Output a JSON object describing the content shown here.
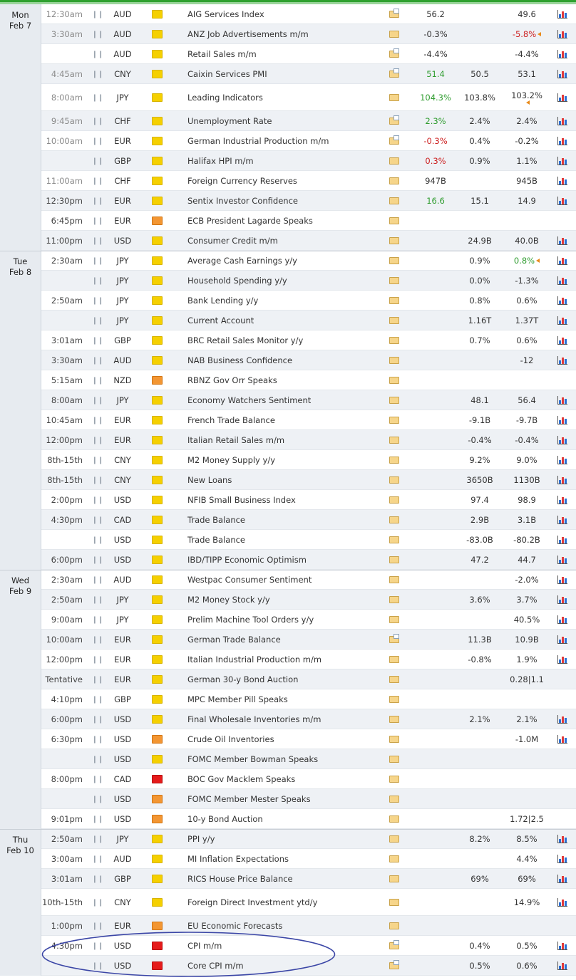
{
  "colors": {
    "good": "#2f9c2f",
    "bad": "#cc1f1f",
    "impact_low": "#f5d000",
    "impact_medium": "#f39632",
    "impact_high": "#e51b1b",
    "annotation": "#3b46a6"
  },
  "days": [
    {
      "name": "Mon",
      "date": "Feb 7"
    },
    {
      "name": "Tue",
      "date": "Feb 8"
    },
    {
      "name": "Wed",
      "date": "Feb 9"
    },
    {
      "name": "Thu",
      "date": "Feb 10"
    }
  ],
  "rows": [
    {
      "day": 0,
      "time": "12:30am",
      "time_dim": true,
      "currency": "AUD",
      "impact": "low",
      "event": "AIG Services Index",
      "folder": "open",
      "actual": "56.2",
      "actual_color": "",
      "forecast": "",
      "previous": "49.6",
      "previous_color": "",
      "revised": false
    },
    {
      "day": 0,
      "time": "3:30am",
      "time_dim": true,
      "currency": "AUD",
      "impact": "low",
      "event": "ANZ Job Advertisements m/m",
      "folder": "closed",
      "actual": "-0.3%",
      "actual_color": "",
      "forecast": "",
      "previous": "-5.8%",
      "previous_color": "bad",
      "revised": true
    },
    {
      "day": 0,
      "time": "",
      "time_dim": false,
      "currency": "AUD",
      "impact": "low",
      "event": "Retail Sales m/m",
      "folder": "open",
      "actual": "-4.4%",
      "actual_color": "",
      "forecast": "",
      "previous": "-4.4%",
      "previous_color": "",
      "revised": false
    },
    {
      "day": 0,
      "time": "4:45am",
      "time_dim": true,
      "currency": "CNY",
      "impact": "low",
      "event": "Caixin Services PMI",
      "folder": "open",
      "actual": "51.4",
      "actual_color": "good",
      "forecast": "50.5",
      "previous": "53.1",
      "previous_color": "",
      "revised": false
    },
    {
      "day": 0,
      "time": "8:00am",
      "time_dim": true,
      "currency": "JPY",
      "impact": "low",
      "event": "Leading Indicators",
      "folder": "closed",
      "actual": "104.3%",
      "actual_color": "good",
      "forecast": "103.8%",
      "previous": "103.2%",
      "previous_color": "",
      "revised": true,
      "tall": true
    },
    {
      "day": 0,
      "time": "9:45am",
      "time_dim": true,
      "currency": "CHF",
      "impact": "low",
      "event": "Unemployment Rate",
      "folder": "open",
      "actual": "2.3%",
      "actual_color": "good",
      "forecast": "2.4%",
      "previous": "2.4%",
      "previous_color": "",
      "revised": false
    },
    {
      "day": 0,
      "time": "10:00am",
      "time_dim": true,
      "currency": "EUR",
      "impact": "low",
      "event": "German Industrial Production m/m",
      "folder": "open",
      "actual": "-0.3%",
      "actual_color": "bad",
      "forecast": "0.4%",
      "previous": "-0.2%",
      "previous_color": "",
      "revised": false
    },
    {
      "day": 0,
      "time": "",
      "time_dim": false,
      "currency": "GBP",
      "impact": "low",
      "event": "Halifax HPI m/m",
      "folder": "closed",
      "actual": "0.3%",
      "actual_color": "bad",
      "forecast": "0.9%",
      "previous": "1.1%",
      "previous_color": "",
      "revised": false
    },
    {
      "day": 0,
      "time": "11:00am",
      "time_dim": true,
      "currency": "CHF",
      "impact": "low",
      "event": "Foreign Currency Reserves",
      "folder": "closed",
      "actual": "947B",
      "actual_color": "",
      "forecast": "",
      "previous": "945B",
      "previous_color": "",
      "revised": false
    },
    {
      "day": 0,
      "time": "12:30pm",
      "time_dim": false,
      "currency": "EUR",
      "impact": "low",
      "event": "Sentix Investor Confidence",
      "folder": "closed",
      "actual": "16.6",
      "actual_color": "good",
      "forecast": "15.1",
      "previous": "14.9",
      "previous_color": "",
      "revised": false
    },
    {
      "day": 0,
      "time": "6:45pm",
      "time_dim": false,
      "currency": "EUR",
      "impact": "medium",
      "event": "ECB President Lagarde Speaks",
      "folder": "closed",
      "actual": "",
      "actual_color": "",
      "forecast": "",
      "previous": "",
      "previous_color": "",
      "revised": false,
      "nochart": true
    },
    {
      "day": 0,
      "time": "11:00pm",
      "time_dim": false,
      "currency": "USD",
      "impact": "low",
      "event": "Consumer Credit m/m",
      "folder": "closed",
      "actual": "",
      "actual_color": "",
      "forecast": "24.9B",
      "previous": "40.0B",
      "previous_color": "",
      "revised": false
    },
    {
      "day": 1,
      "time": "2:30am",
      "time_dim": false,
      "currency": "JPY",
      "impact": "low",
      "event": "Average Cash Earnings y/y",
      "folder": "closed",
      "actual": "",
      "actual_color": "",
      "forecast": "0.9%",
      "previous": "0.8%",
      "previous_color": "good",
      "revised": true
    },
    {
      "day": 1,
      "time": "",
      "time_dim": false,
      "currency": "JPY",
      "impact": "low",
      "event": "Household Spending y/y",
      "folder": "closed",
      "actual": "",
      "actual_color": "",
      "forecast": "0.0%",
      "previous": "-1.3%",
      "previous_color": "",
      "revised": false
    },
    {
      "day": 1,
      "time": "2:50am",
      "time_dim": false,
      "currency": "JPY",
      "impact": "low",
      "event": "Bank Lending y/y",
      "folder": "closed",
      "actual": "",
      "actual_color": "",
      "forecast": "0.8%",
      "previous": "0.6%",
      "previous_color": "",
      "revised": false
    },
    {
      "day": 1,
      "time": "",
      "time_dim": false,
      "currency": "JPY",
      "impact": "low",
      "event": "Current Account",
      "folder": "closed",
      "actual": "",
      "actual_color": "",
      "forecast": "1.16T",
      "previous": "1.37T",
      "previous_color": "",
      "revised": false
    },
    {
      "day": 1,
      "time": "3:01am",
      "time_dim": false,
      "currency": "GBP",
      "impact": "low",
      "event": "BRC Retail Sales Monitor y/y",
      "folder": "closed",
      "actual": "",
      "actual_color": "",
      "forecast": "0.7%",
      "previous": "0.6%",
      "previous_color": "",
      "revised": false
    },
    {
      "day": 1,
      "time": "3:30am",
      "time_dim": false,
      "currency": "AUD",
      "impact": "low",
      "event": "NAB Business Confidence",
      "folder": "closed",
      "actual": "",
      "actual_color": "",
      "forecast": "",
      "previous": "-12",
      "previous_color": "",
      "revised": false
    },
    {
      "day": 1,
      "time": "5:15am",
      "time_dim": false,
      "currency": "NZD",
      "impact": "medium",
      "event": "RBNZ Gov Orr Speaks",
      "folder": "closed",
      "actual": "",
      "actual_color": "",
      "forecast": "",
      "previous": "",
      "previous_color": "",
      "revised": false,
      "nochart": true
    },
    {
      "day": 1,
      "time": "8:00am",
      "time_dim": false,
      "currency": "JPY",
      "impact": "low",
      "event": "Economy Watchers Sentiment",
      "folder": "closed",
      "actual": "",
      "actual_color": "",
      "forecast": "48.1",
      "previous": "56.4",
      "previous_color": "",
      "revised": false
    },
    {
      "day": 1,
      "time": "10:45am",
      "time_dim": false,
      "currency": "EUR",
      "impact": "low",
      "event": "French Trade Balance",
      "folder": "closed",
      "actual": "",
      "actual_color": "",
      "forecast": "-9.1B",
      "previous": "-9.7B",
      "previous_color": "",
      "revised": false
    },
    {
      "day": 1,
      "time": "12:00pm",
      "time_dim": false,
      "currency": "EUR",
      "impact": "low",
      "event": "Italian Retail Sales m/m",
      "folder": "closed",
      "actual": "",
      "actual_color": "",
      "forecast": "-0.4%",
      "previous": "-0.4%",
      "previous_color": "",
      "revised": false
    },
    {
      "day": 1,
      "time": "8th-15th",
      "time_dim": false,
      "currency": "CNY",
      "impact": "low",
      "event": "M2 Money Supply y/y",
      "folder": "closed",
      "actual": "",
      "actual_color": "",
      "forecast": "9.2%",
      "previous": "9.0%",
      "previous_color": "",
      "revised": false
    },
    {
      "day": 1,
      "time": "8th-15th",
      "time_dim": false,
      "currency": "CNY",
      "impact": "low",
      "event": "New Loans",
      "folder": "closed",
      "actual": "",
      "actual_color": "",
      "forecast": "3650B",
      "previous": "1130B",
      "previous_color": "",
      "revised": false
    },
    {
      "day": 1,
      "time": "2:00pm",
      "time_dim": false,
      "currency": "USD",
      "impact": "low",
      "event": "NFIB Small Business Index",
      "folder": "closed",
      "actual": "",
      "actual_color": "",
      "forecast": "97.4",
      "previous": "98.9",
      "previous_color": "",
      "revised": false
    },
    {
      "day": 1,
      "time": "4:30pm",
      "time_dim": false,
      "currency": "CAD",
      "impact": "low",
      "event": "Trade Balance",
      "folder": "closed",
      "actual": "",
      "actual_color": "",
      "forecast": "2.9B",
      "previous": "3.1B",
      "previous_color": "",
      "revised": false
    },
    {
      "day": 1,
      "time": "",
      "time_dim": false,
      "currency": "USD",
      "impact": "low",
      "event": "Trade Balance",
      "folder": "closed",
      "actual": "",
      "actual_color": "",
      "forecast": "-83.0B",
      "previous": "-80.2B",
      "previous_color": "",
      "revised": false
    },
    {
      "day": 1,
      "time": "6:00pm",
      "time_dim": false,
      "currency": "USD",
      "impact": "low",
      "event": "IBD/TIPP Economic Optimism",
      "folder": "closed",
      "actual": "",
      "actual_color": "",
      "forecast": "47.2",
      "previous": "44.7",
      "previous_color": "",
      "revised": false
    },
    {
      "day": 2,
      "time": "2:30am",
      "time_dim": false,
      "currency": "AUD",
      "impact": "low",
      "event": "Westpac Consumer Sentiment",
      "folder": "closed",
      "actual": "",
      "actual_color": "",
      "forecast": "",
      "previous": "-2.0%",
      "previous_color": "",
      "revised": false
    },
    {
      "day": 2,
      "time": "2:50am",
      "time_dim": false,
      "currency": "JPY",
      "impact": "low",
      "event": "M2 Money Stock y/y",
      "folder": "closed",
      "actual": "",
      "actual_color": "",
      "forecast": "3.6%",
      "previous": "3.7%",
      "previous_color": "",
      "revised": false
    },
    {
      "day": 2,
      "time": "9:00am",
      "time_dim": false,
      "currency": "JPY",
      "impact": "low",
      "event": "Prelim Machine Tool Orders y/y",
      "folder": "closed",
      "actual": "",
      "actual_color": "",
      "forecast": "",
      "previous": "40.5%",
      "previous_color": "",
      "revised": false
    },
    {
      "day": 2,
      "time": "10:00am",
      "time_dim": false,
      "currency": "EUR",
      "impact": "low",
      "event": "German Trade Balance",
      "folder": "open",
      "actual": "",
      "actual_color": "",
      "forecast": "11.3B",
      "previous": "10.9B",
      "previous_color": "",
      "revised": false
    },
    {
      "day": 2,
      "time": "12:00pm",
      "time_dim": false,
      "currency": "EUR",
      "impact": "low",
      "event": "Italian Industrial Production m/m",
      "folder": "closed",
      "actual": "",
      "actual_color": "",
      "forecast": "-0.8%",
      "previous": "1.9%",
      "previous_color": "",
      "revised": false
    },
    {
      "day": 2,
      "time": "Tentative",
      "time_dim": false,
      "currency": "EUR",
      "impact": "low",
      "event": "German 30-y Bond Auction",
      "folder": "closed",
      "actual": "",
      "actual_color": "",
      "forecast": "",
      "previous": "0.28|1.1",
      "previous_color": "",
      "revised": false,
      "nochart": true
    },
    {
      "day": 2,
      "time": "4:10pm",
      "time_dim": false,
      "currency": "GBP",
      "impact": "low",
      "event": "MPC Member Pill Speaks",
      "folder": "closed",
      "actual": "",
      "actual_color": "",
      "forecast": "",
      "previous": "",
      "previous_color": "",
      "revised": false,
      "nochart": true
    },
    {
      "day": 2,
      "time": "6:00pm",
      "time_dim": false,
      "currency": "USD",
      "impact": "low",
      "event": "Final Wholesale Inventories m/m",
      "folder": "closed",
      "actual": "",
      "actual_color": "",
      "forecast": "2.1%",
      "previous": "2.1%",
      "previous_color": "",
      "revised": false
    },
    {
      "day": 2,
      "time": "6:30pm",
      "time_dim": false,
      "currency": "USD",
      "impact": "medium",
      "event": "Crude Oil Inventories",
      "folder": "closed",
      "actual": "",
      "actual_color": "",
      "forecast": "",
      "previous": "-1.0M",
      "previous_color": "",
      "revised": false
    },
    {
      "day": 2,
      "time": "",
      "time_dim": false,
      "currency": "USD",
      "impact": "low",
      "event": "FOMC Member Bowman Speaks",
      "folder": "closed",
      "actual": "",
      "actual_color": "",
      "forecast": "",
      "previous": "",
      "previous_color": "",
      "revised": false,
      "nochart": true
    },
    {
      "day": 2,
      "time": "8:00pm",
      "time_dim": false,
      "currency": "CAD",
      "impact": "high",
      "event": "BOC Gov Macklem Speaks",
      "folder": "closed",
      "actual": "",
      "actual_color": "",
      "forecast": "",
      "previous": "",
      "previous_color": "",
      "revised": false,
      "nochart": true
    },
    {
      "day": 2,
      "time": "",
      "time_dim": false,
      "currency": "USD",
      "impact": "medium",
      "event": "FOMC Member Mester Speaks",
      "folder": "closed",
      "actual": "",
      "actual_color": "",
      "forecast": "",
      "previous": "",
      "previous_color": "",
      "revised": false,
      "nochart": true
    },
    {
      "day": 2,
      "time": "9:01pm",
      "time_dim": false,
      "currency": "USD",
      "impact": "medium",
      "event": "10-y Bond Auction",
      "folder": "closed",
      "actual": "",
      "actual_color": "",
      "forecast": "",
      "previous": "1.72|2.5",
      "previous_color": "",
      "revised": false,
      "nochart": true
    },
    {
      "day": 3,
      "time": "2:50am",
      "time_dim": false,
      "currency": "JPY",
      "impact": "low",
      "event": "PPI y/y",
      "folder": "closed",
      "actual": "",
      "actual_color": "",
      "forecast": "8.2%",
      "previous": "8.5%",
      "previous_color": "",
      "revised": false
    },
    {
      "day": 3,
      "time": "3:00am",
      "time_dim": false,
      "currency": "AUD",
      "impact": "low",
      "event": "MI Inflation Expectations",
      "folder": "closed",
      "actual": "",
      "actual_color": "",
      "forecast": "",
      "previous": "4.4%",
      "previous_color": "",
      "revised": false
    },
    {
      "day": 3,
      "time": "3:01am",
      "time_dim": false,
      "currency": "GBP",
      "impact": "low",
      "event": "RICS House Price Balance",
      "folder": "closed",
      "actual": "",
      "actual_color": "",
      "forecast": "69%",
      "previous": "69%",
      "previous_color": "",
      "revised": false
    },
    {
      "day": 3,
      "time": "10th-15th",
      "time_dim": false,
      "currency": "CNY",
      "impact": "low",
      "event": "Foreign Direct Investment ytd/y",
      "folder": "closed",
      "actual": "",
      "actual_color": "",
      "forecast": "",
      "previous": "14.9%",
      "previous_color": "",
      "revised": false,
      "tall": true
    },
    {
      "day": 3,
      "time": "1:00pm",
      "time_dim": false,
      "currency": "EUR",
      "impact": "medium",
      "event": "EU Economic Forecasts",
      "folder": "closed",
      "actual": "",
      "actual_color": "",
      "forecast": "",
      "previous": "",
      "previous_color": "",
      "revised": false,
      "nochart": true
    },
    {
      "day": 3,
      "time": "4:30pm",
      "time_dim": false,
      "currency": "USD",
      "impact": "high",
      "event": "CPI m/m",
      "folder": "open",
      "actual": "",
      "actual_color": "",
      "forecast": "0.4%",
      "previous": "0.5%",
      "previous_color": "",
      "revised": false
    },
    {
      "day": 3,
      "time": "",
      "time_dim": false,
      "currency": "USD",
      "impact": "high",
      "event": "Core CPI m/m",
      "folder": "open",
      "actual": "",
      "actual_color": "",
      "forecast": "0.5%",
      "previous": "0.6%",
      "previous_color": "",
      "revised": false
    }
  ]
}
